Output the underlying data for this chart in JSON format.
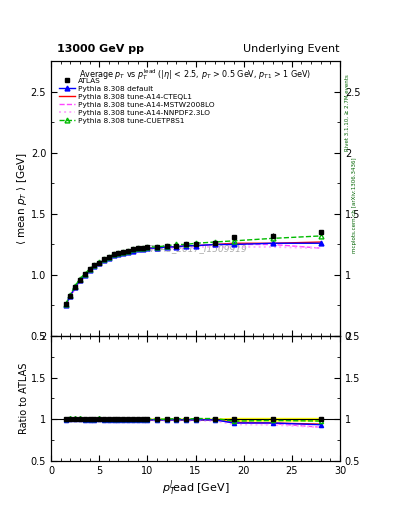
{
  "title_left": "13000 GeV pp",
  "title_right": "Underlying Event",
  "plot_title": "Average $p_T$ vs $p_T^{\\mathrm{lead}}$ ($|\\eta|$ < 2.5, $p_T$ > 0.5 GeV, $p_{T1}$ > 1 GeV)",
  "xlabel": "$p_T^l$ead [GeV]",
  "ylabel_main": "$\\langle$ mean $p_T$ $\\rangle$ [GeV]",
  "ylabel_ratio": "Ratio to ATLAS",
  "watermark": "ATLAS_2017_I1509919",
  "right_label": "mcplots.cern.ch [arXiv:1306.3436]",
  "right_label2": "Rivet 3.1.10, ≥ 2.7M events",
  "xlim": [
    0,
    30
  ],
  "ylim_main": [
    0.5,
    2.75
  ],
  "ylim_ratio": [
    0.5,
    2.0
  ],
  "data_x": [
    1.5,
    2.0,
    2.5,
    3.0,
    3.5,
    4.0,
    4.5,
    5.0,
    5.5,
    6.0,
    6.5,
    7.0,
    7.5,
    8.0,
    8.5,
    9.0,
    9.5,
    10.0,
    11.0,
    12.0,
    13.0,
    14.0,
    15.0,
    17.0,
    19.0,
    23.0,
    28.0
  ],
  "data_y": [
    0.76,
    0.83,
    0.9,
    0.96,
    1.01,
    1.05,
    1.08,
    1.1,
    1.13,
    1.15,
    1.17,
    1.18,
    1.19,
    1.2,
    1.21,
    1.22,
    1.22,
    1.23,
    1.23,
    1.24,
    1.24,
    1.25,
    1.25,
    1.26,
    1.31,
    1.32,
    1.35
  ],
  "data_yerr": [
    0.01,
    0.01,
    0.01,
    0.01,
    0.01,
    0.01,
    0.01,
    0.01,
    0.01,
    0.01,
    0.01,
    0.01,
    0.01,
    0.01,
    0.01,
    0.01,
    0.01,
    0.01,
    0.01,
    0.01,
    0.01,
    0.01,
    0.01,
    0.01,
    0.02,
    0.02,
    0.02
  ],
  "py_default_x": [
    1.5,
    2.0,
    2.5,
    3.0,
    3.5,
    4.0,
    4.5,
    5.0,
    5.5,
    6.0,
    6.5,
    7.0,
    7.5,
    8.0,
    8.5,
    9.0,
    9.5,
    10.0,
    11.0,
    12.0,
    13.0,
    14.0,
    15.0,
    17.0,
    19.0,
    23.0,
    28.0
  ],
  "py_default_y": [
    0.75,
    0.83,
    0.9,
    0.96,
    1.0,
    1.04,
    1.07,
    1.1,
    1.12,
    1.14,
    1.16,
    1.17,
    1.18,
    1.19,
    1.2,
    1.21,
    1.21,
    1.22,
    1.22,
    1.23,
    1.23,
    1.24,
    1.24,
    1.25,
    1.25,
    1.26,
    1.26
  ],
  "py_cteql1_x": [
    1.5,
    2.0,
    2.5,
    3.0,
    3.5,
    4.0,
    4.5,
    5.0,
    5.5,
    6.0,
    6.5,
    7.0,
    7.5,
    8.0,
    8.5,
    9.0,
    9.5,
    10.0,
    11.0,
    12.0,
    13.0,
    14.0,
    15.0,
    17.0,
    19.0,
    23.0,
    28.0
  ],
  "py_cteql1_y": [
    0.75,
    0.83,
    0.9,
    0.96,
    1.0,
    1.04,
    1.07,
    1.1,
    1.12,
    1.14,
    1.16,
    1.17,
    1.18,
    1.19,
    1.2,
    1.21,
    1.21,
    1.22,
    1.22,
    1.23,
    1.23,
    1.24,
    1.24,
    1.25,
    1.26,
    1.26,
    1.27
  ],
  "py_mstw_x": [
    1.5,
    2.0,
    2.5,
    3.0,
    3.5,
    4.0,
    4.5,
    5.0,
    5.5,
    6.0,
    6.5,
    7.0,
    7.5,
    8.0,
    8.5,
    9.0,
    9.5,
    10.0,
    11.0,
    12.0,
    13.0,
    14.0,
    15.0,
    17.0,
    19.0,
    23.0,
    28.0
  ],
  "py_mstw_y": [
    0.75,
    0.82,
    0.89,
    0.95,
    0.99,
    1.03,
    1.07,
    1.09,
    1.11,
    1.13,
    1.15,
    1.16,
    1.17,
    1.18,
    1.19,
    1.2,
    1.21,
    1.21,
    1.22,
    1.23,
    1.23,
    1.24,
    1.24,
    1.25,
    1.25,
    1.25,
    1.22
  ],
  "py_nnpdf_x": [
    1.5,
    2.0,
    2.5,
    3.0,
    3.5,
    4.0,
    4.5,
    5.0,
    5.5,
    6.0,
    6.5,
    7.0,
    7.5,
    8.0,
    8.5,
    9.0,
    9.5,
    10.0,
    11.0,
    12.0,
    13.0,
    14.0,
    15.0,
    17.0,
    19.0,
    23.0,
    28.0
  ],
  "py_nnpdf_y": [
    0.75,
    0.82,
    0.89,
    0.95,
    0.99,
    1.03,
    1.06,
    1.09,
    1.11,
    1.13,
    1.14,
    1.16,
    1.17,
    1.18,
    1.19,
    1.19,
    1.2,
    1.21,
    1.21,
    1.22,
    1.22,
    1.22,
    1.23,
    1.23,
    1.23,
    1.23,
    1.22
  ],
  "py_cuetp_x": [
    1.5,
    2.0,
    2.5,
    3.0,
    3.5,
    4.0,
    4.5,
    5.0,
    5.5,
    6.0,
    6.5,
    7.0,
    7.5,
    8.0,
    8.5,
    9.0,
    9.5,
    10.0,
    11.0,
    12.0,
    13.0,
    14.0,
    15.0,
    17.0,
    19.0,
    23.0,
    28.0
  ],
  "py_cuetp_y": [
    0.76,
    0.84,
    0.91,
    0.97,
    1.01,
    1.05,
    1.08,
    1.11,
    1.13,
    1.15,
    1.17,
    1.18,
    1.19,
    1.2,
    1.21,
    1.22,
    1.22,
    1.23,
    1.23,
    1.24,
    1.25,
    1.25,
    1.26,
    1.27,
    1.28,
    1.3,
    1.32
  ],
  "color_default": "#0000ff",
  "color_cteql1": "#ff0000",
  "color_mstw": "#ff44ff",
  "color_nnpdf": "#ffaaff",
  "color_cuetp": "#00bb00",
  "band_color": "#ffff00"
}
